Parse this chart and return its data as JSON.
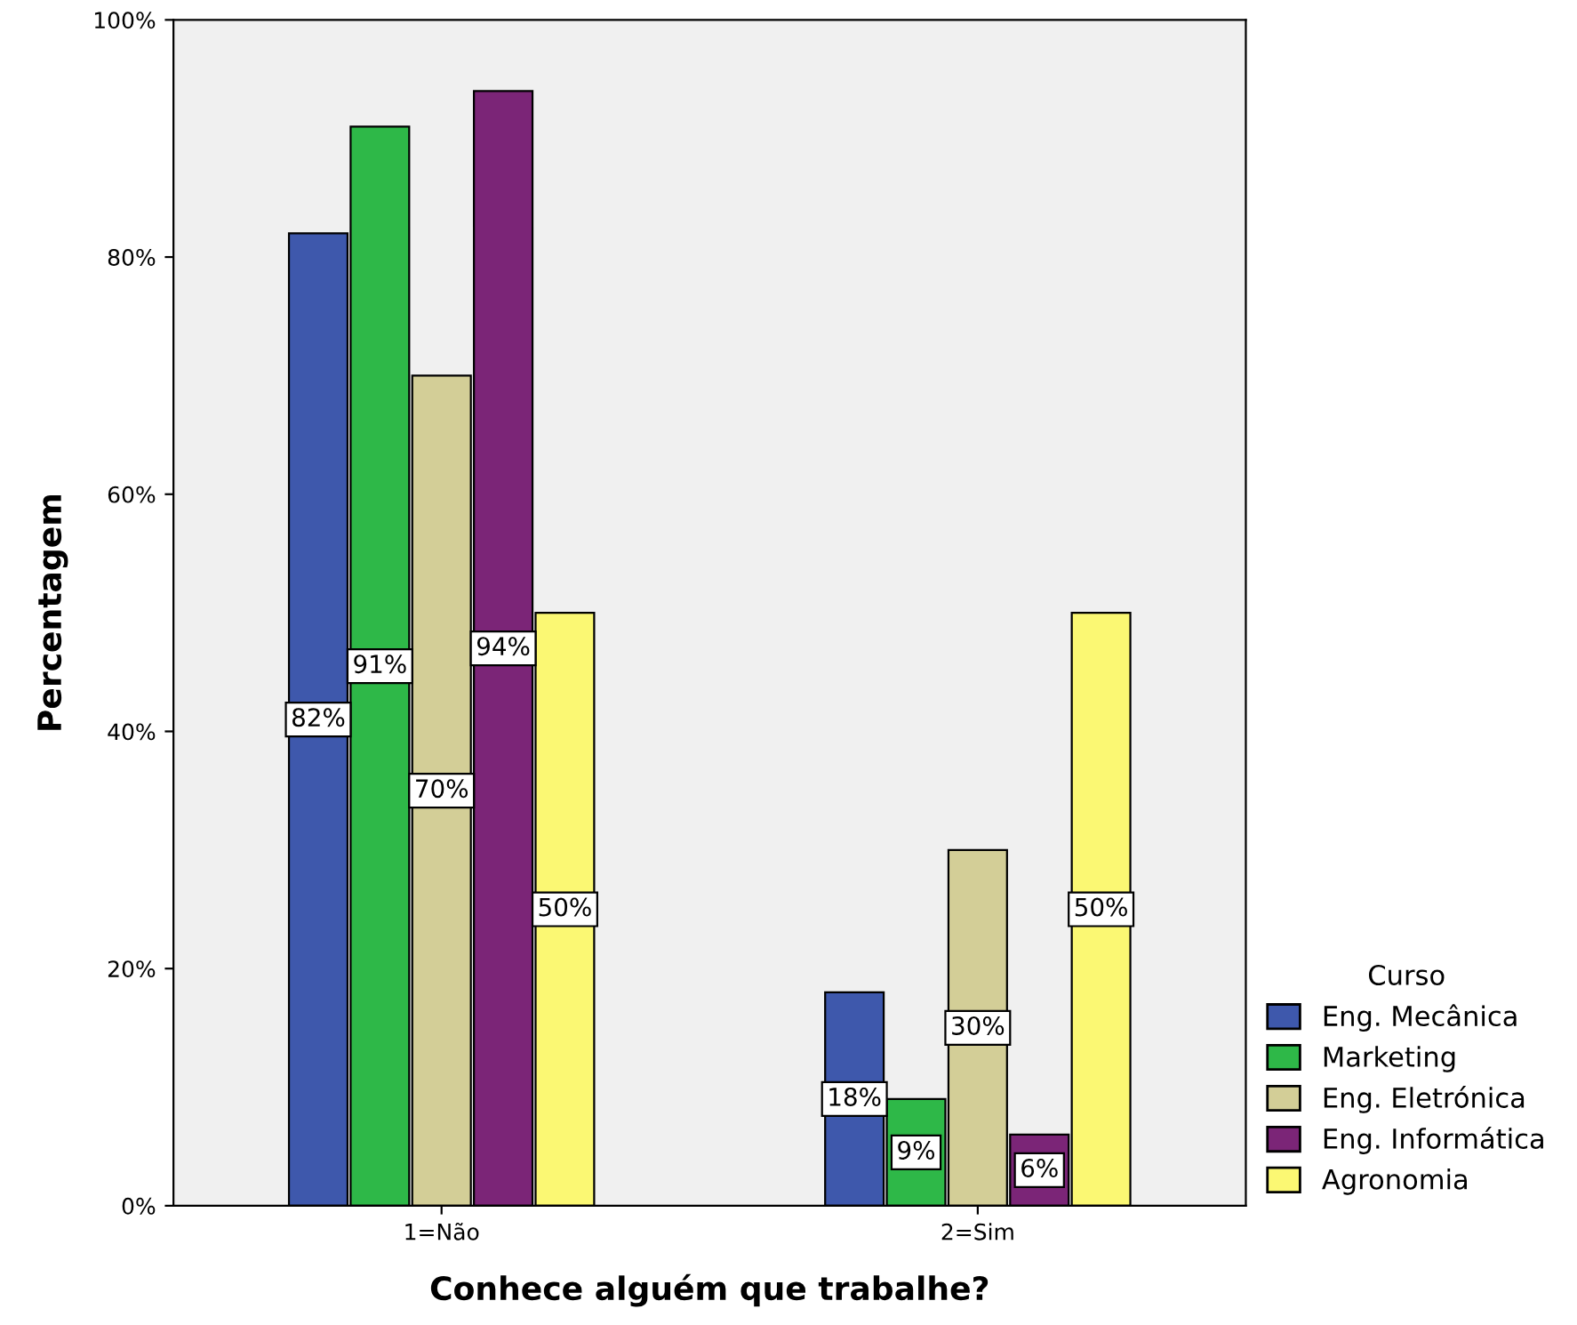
{
  "chart_data": {
    "type": "bar",
    "xlabel": "Conhece alguém que trabalhe?",
    "ylabel": "Percentagem",
    "legend_title": "Curso",
    "categories": [
      "1=Não",
      "2=Sim"
    ],
    "series": [
      {
        "name": "Eng. Mecânica",
        "color": "#3e58ac",
        "values": [
          82,
          18
        ],
        "value_labels": [
          "82%",
          "18%"
        ]
      },
      {
        "name": "Marketing",
        "color": "#2eb848",
        "values": [
          91,
          9
        ],
        "value_labels": [
          "91%",
          "9%"
        ]
      },
      {
        "name": "Eng. Eletrónica",
        "color": "#d3ce97",
        "values": [
          70,
          30
        ],
        "value_labels": [
          "70%",
          "30%"
        ]
      },
      {
        "name": "Eng. Informática",
        "color": "#7b2577",
        "values": [
          94,
          6
        ],
        "value_labels": [
          "94%",
          "6%"
        ]
      },
      {
        "name": "Agronomia",
        "color": "#fbf873",
        "values": [
          50,
          50
        ],
        "value_labels": [
          "50%",
          "50%"
        ]
      }
    ],
    "ylim": [
      0,
      100
    ],
    "yticks": [
      {
        "value": 0,
        "label": "0%"
      },
      {
        "value": 20,
        "label": "20%"
      },
      {
        "value": 40,
        "label": "40%"
      },
      {
        "value": 60,
        "label": "60%"
      },
      {
        "value": 80,
        "label": "80%"
      },
      {
        "value": 100,
        "label": "100%"
      }
    ],
    "grid": false,
    "legend": "right"
  }
}
